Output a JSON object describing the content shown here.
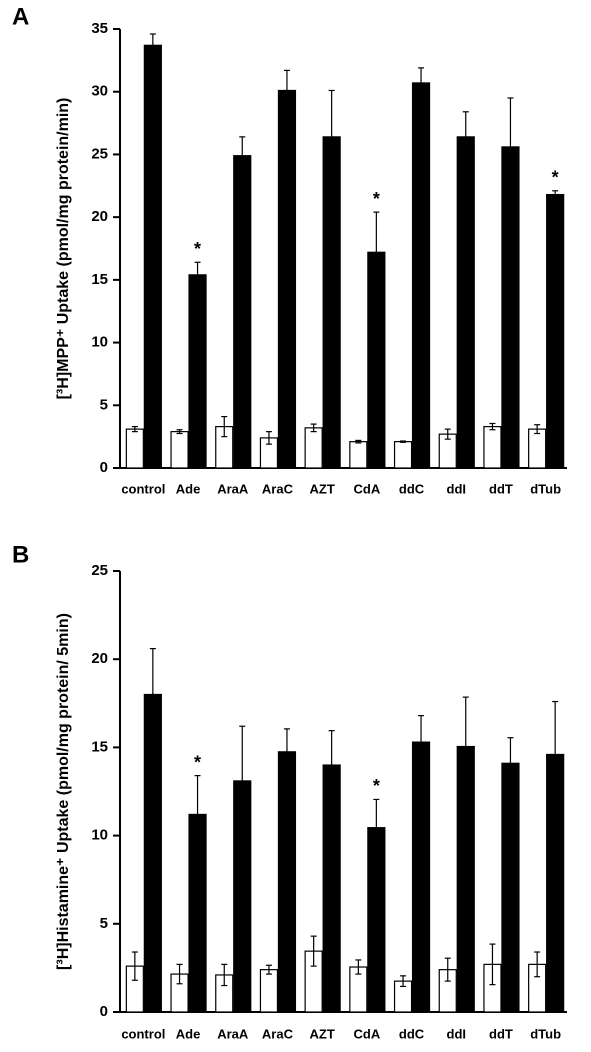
{
  "chart_data": [
    {
      "type": "bar",
      "panel": "A",
      "ylabel": "[³H]MPP⁺ Uptake (pmol/mg protein/min)",
      "categories": [
        "control",
        "Ade",
        "AraA",
        "AraC",
        "AZT",
        "CdA",
        "ddC",
        "ddI",
        "ddT",
        "dTub"
      ],
      "ylim": [
        0,
        35
      ],
      "yticks": [
        0,
        5,
        10,
        15,
        20,
        25,
        30,
        35
      ],
      "series": [
        {
          "color": "#ffffff",
          "values": [
            3.1,
            2.9,
            3.3,
            2.4,
            3.2,
            2.1,
            2.1,
            2.7,
            3.3,
            3.1
          ],
          "errors": [
            0.2,
            0.15,
            0.8,
            0.5,
            0.3,
            0.1,
            0.05,
            0.4,
            0.25,
            0.35
          ]
        },
        {
          "color": "#000000",
          "values": [
            33.7,
            15.4,
            24.9,
            30.1,
            26.4,
            17.2,
            30.7,
            26.4,
            25.6,
            21.8
          ],
          "errors": [
            0.9,
            1.0,
            1.5,
            1.6,
            3.7,
            3.2,
            1.2,
            2.0,
            3.9,
            0.3
          ],
          "significance": [
            null,
            "*",
            null,
            null,
            null,
            "*",
            null,
            null,
            null,
            "*"
          ]
        }
      ]
    },
    {
      "type": "bar",
      "panel": "B",
      "ylabel": "[³H]Histamine⁺ Uptake (pmol/mg protein/ 5min)",
      "categories": [
        "control",
        "Ade",
        "AraA",
        "AraC",
        "AZT",
        "CdA",
        "ddC",
        "ddI",
        "ddT",
        "dTub"
      ],
      "ylim": [
        0,
        25
      ],
      "yticks": [
        0,
        5,
        10,
        15,
        20,
        25
      ],
      "series": [
        {
          "color": "#ffffff",
          "values": [
            2.6,
            2.15,
            2.1,
            2.4,
            3.45,
            2.55,
            1.75,
            2.4,
            2.7,
            2.7
          ],
          "errors": [
            0.8,
            0.55,
            0.6,
            0.25,
            0.85,
            0.4,
            0.3,
            0.65,
            1.15,
            0.7
          ]
        },
        {
          "color": "#000000",
          "values": [
            18.0,
            11.2,
            13.1,
            14.75,
            14.0,
            10.45,
            15.3,
            15.05,
            14.1,
            14.6
          ],
          "errors": [
            2.6,
            2.2,
            3.1,
            1.3,
            1.95,
            1.6,
            1.5,
            2.8,
            1.45,
            3.0
          ],
          "significance": [
            null,
            "*",
            null,
            null,
            null,
            "*",
            null,
            null,
            null,
            null
          ]
        }
      ]
    }
  ]
}
